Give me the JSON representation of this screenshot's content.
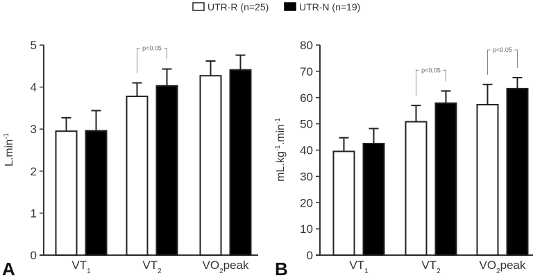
{
  "legend": {
    "items": [
      {
        "label": "UTR-R (n=25)",
        "fill": "#ffffff"
      },
      {
        "label": "UTR-N (n=19)",
        "fill": "#000000"
      }
    ]
  },
  "chart_data": [
    {
      "type": "bar",
      "panel": "A",
      "title": "",
      "xlabel": "",
      "ylabel": "L.min-1",
      "ylabel_main": "L.min",
      "ylabel_sup": "-1",
      "ylim": [
        0,
        5
      ],
      "yticks": [
        0,
        1,
        2,
        3,
        4,
        5
      ],
      "categories": [
        {
          "main": "VT",
          "sub": "1",
          "suffix": ""
        },
        {
          "main": "VT",
          "sub": "2",
          "suffix": ""
        },
        {
          "main": "VO",
          "sub": "2",
          "suffix": "peak"
        }
      ],
      "series": [
        {
          "name": "UTR-R (n=25)",
          "fill": "#ffffff",
          "values": [
            2.95,
            3.78,
            4.27
          ],
          "errors": [
            0.32,
            0.32,
            0.35
          ]
        },
        {
          "name": "UTR-N (n=19)",
          "fill": "#000000",
          "values": [
            2.96,
            4.03,
            4.41
          ],
          "errors": [
            0.48,
            0.4,
            0.35
          ]
        }
      ],
      "significance": [
        {
          "category_index": 1,
          "label": "p<0.05"
        }
      ],
      "grid": false,
      "legend_position": "top-center"
    },
    {
      "type": "bar",
      "panel": "B",
      "title": "",
      "xlabel": "",
      "ylabel": "mL.kg-1.min-1",
      "ylabel_parts": [
        "mL.kg",
        "-1",
        ".min",
        "-1"
      ],
      "ylim": [
        0,
        80
      ],
      "yticks": [
        0,
        10,
        20,
        30,
        40,
        50,
        60,
        70,
        80
      ],
      "categories": [
        {
          "main": "VT",
          "sub": "1",
          "suffix": ""
        },
        {
          "main": "VT",
          "sub": "2",
          "suffix": ""
        },
        {
          "main": "VO",
          "sub": "2",
          "suffix": "peak"
        }
      ],
      "series": [
        {
          "name": "UTR-R (n=25)",
          "fill": "#ffffff",
          "values": [
            39.5,
            50.8,
            57.3
          ],
          "errors": [
            5.2,
            6.2,
            7.7
          ]
        },
        {
          "name": "UTR-N (n=19)",
          "fill": "#000000",
          "values": [
            42.5,
            57.9,
            63.4
          ],
          "errors": [
            5.7,
            4.6,
            4.2
          ]
        }
      ],
      "significance": [
        {
          "category_index": 1,
          "label": "p<0.05"
        },
        {
          "category_index": 2,
          "label": "p<0.05"
        }
      ],
      "grid": false,
      "legend_position": "top-center"
    }
  ]
}
